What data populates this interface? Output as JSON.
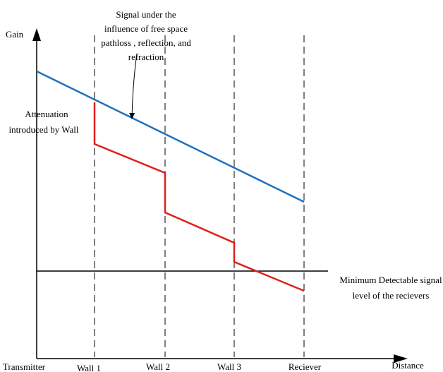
{
  "axes": {
    "y_label": "Gain",
    "x_label": "Distance"
  },
  "positions": [
    "Transmitter",
    "Wall 1",
    "Wall 2",
    "Wall 3",
    "Reciever"
  ],
  "annotations": {
    "free_space": [
      "Signal under the",
      "influence of free space",
      "pathloss , reflection, and",
      "refraction"
    ],
    "wall_attenuation": [
      "Attenuation",
      "introduced by Wall"
    ],
    "minimum_level": [
      "Minimum Detectable signal",
      "level of the recievers"
    ]
  },
  "colors": {
    "free_space_signal": "#1f6fbf",
    "wall_attenuated_signal": "#e0201b",
    "axes": "#000000",
    "wall_lines": "#000000",
    "minimum_level_line": "#000000"
  }
}
